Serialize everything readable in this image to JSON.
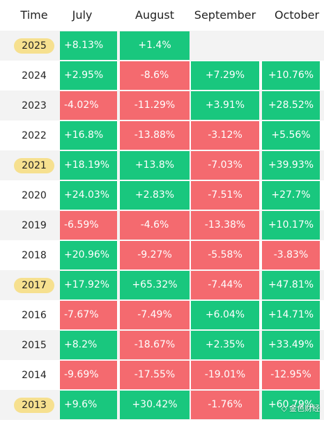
{
  "header": {
    "time": "Time",
    "months": [
      "July",
      "August",
      "September",
      "October"
    ]
  },
  "colors": {
    "positive": "#19c77e",
    "negative": "#f46a6f",
    "highlight": "#f6e08f"
  },
  "rows": [
    {
      "year": "2025",
      "highlight": true,
      "cells": [
        "+8.13%",
        "+1.4%",
        "",
        ""
      ]
    },
    {
      "year": "2024",
      "highlight": false,
      "cells": [
        "+2.95%",
        "-8.6%",
        "+7.29%",
        "+10.76%"
      ]
    },
    {
      "year": "2023",
      "highlight": false,
      "cells": [
        "-4.02%",
        "-11.29%",
        "+3.91%",
        "+28.52%"
      ]
    },
    {
      "year": "2022",
      "highlight": false,
      "cells": [
        "+16.8%",
        "-13.88%",
        "-3.12%",
        "+5.56%"
      ]
    },
    {
      "year": "2021",
      "highlight": true,
      "cells": [
        "+18.19%",
        "+13.8%",
        "-7.03%",
        "+39.93%"
      ]
    },
    {
      "year": "2020",
      "highlight": false,
      "cells": [
        "+24.03%",
        "+2.83%",
        "-7.51%",
        "+27.7%"
      ]
    },
    {
      "year": "2019",
      "highlight": false,
      "cells": [
        "-6.59%",
        "-4.6%",
        "-13.38%",
        "+10.17%"
      ]
    },
    {
      "year": "2018",
      "highlight": false,
      "cells": [
        "+20.96%",
        "-9.27%",
        "-5.58%",
        "-3.83%"
      ]
    },
    {
      "year": "2017",
      "highlight": true,
      "cells": [
        "+17.92%",
        "+65.32%",
        "-7.44%",
        "+47.81%"
      ]
    },
    {
      "year": "2016",
      "highlight": false,
      "cells": [
        "-7.67%",
        "-7.49%",
        "+6.04%",
        "+14.71%"
      ]
    },
    {
      "year": "2015",
      "highlight": false,
      "cells": [
        "+8.2%",
        "-18.67%",
        "+2.35%",
        "+33.49%"
      ]
    },
    {
      "year": "2014",
      "highlight": false,
      "cells": [
        "-9.69%",
        "-17.55%",
        "-19.01%",
        "-12.95%"
      ]
    },
    {
      "year": "2013",
      "highlight": true,
      "cells": [
        "+9.6%",
        "+30.42%",
        "-1.76%",
        "+60.79%"
      ]
    }
  ],
  "watermark": {
    "icon": "diamond-logo-icon",
    "text": "金色财经"
  }
}
